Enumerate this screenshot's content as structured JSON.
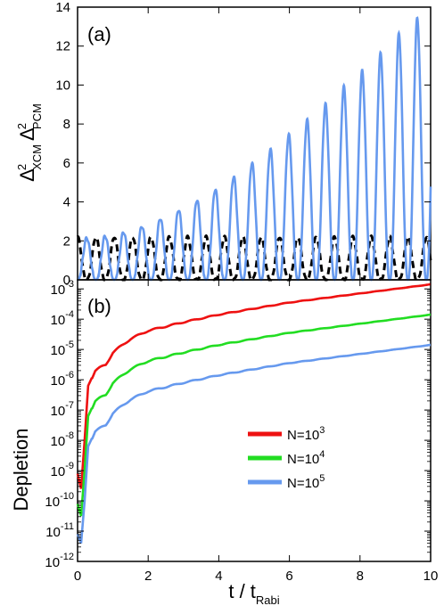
{
  "chart_data": [
    {
      "type": "line",
      "panel_label": "(a)",
      "ylabel": "Δ²XCM Δ²PCM",
      "ylabel_parts": {
        "delta": "Δ",
        "sup": "2",
        "sub_x": "XCM",
        "sub_p": "PCM"
      },
      "xlim": [
        0,
        10
      ],
      "ylim": [
        0,
        14
      ],
      "yticks": [
        "0",
        "2",
        "4",
        "6",
        "8",
        "10",
        "12",
        "14"
      ],
      "series": [
        {
          "style": "solid",
          "color": "#6699ee",
          "description_values": {
            "period": 0.52,
            "min": 0.0,
            "peak_start": 2.1,
            "peak_end": 13.8
          },
          "x": [
            0,
            0.5,
            1,
            1.5,
            2,
            2.5,
            3,
            3.5,
            4,
            4.5,
            5,
            5.5,
            6,
            6.5,
            7,
            7.5,
            8,
            8.5,
            9,
            9.5,
            10
          ],
          "peaks": [
            2.1,
            2.2,
            2.3,
            2.6,
            2.9,
            3.4,
            3.8,
            4.4,
            4.9,
            5.7,
            6.3,
            7.1,
            7.8,
            8.6,
            9.4,
            10.4,
            11.0,
            12.2,
            13.0,
            13.8
          ]
        },
        {
          "style": "dashed",
          "color": "#000000",
          "description_values": {
            "period": 0.52,
            "min": 0.0,
            "peak": 2.2
          }
        }
      ]
    },
    {
      "type": "line",
      "panel_label": "(b)",
      "ylabel": "Depletion",
      "xlabel": "t / tRabi",
      "xlabel_parts": {
        "main": "t / t",
        "sub": "Rabi"
      },
      "xlim": [
        0,
        10
      ],
      "ylog": true,
      "ylim_exp": [
        -12,
        -2.7
      ],
      "xticks": [
        "0",
        "2",
        "4",
        "6",
        "8",
        "10"
      ],
      "yticks": [
        {
          "base": "10",
          "exp": "-3"
        },
        {
          "base": "10",
          "exp": "-4"
        },
        {
          "base": "10",
          "exp": "-5"
        },
        {
          "base": "10",
          "exp": "-6"
        },
        {
          "base": "10",
          "exp": "-7"
        },
        {
          "base": "10",
          "exp": "-8"
        },
        {
          "base": "10",
          "exp": "-9"
        },
        {
          "base": "10",
          "exp": "-10"
        },
        {
          "base": "10",
          "exp": "-11"
        },
        {
          "base": "10",
          "exp": "-12"
        }
      ],
      "legend_position": "center-right",
      "series": [
        {
          "name": "N=10³",
          "name_parts": {
            "base": "N=10",
            "sup": "3"
          },
          "color": "#ee1111",
          "x": [
            0.0,
            0.1,
            0.2,
            0.3,
            0.5,
            0.8,
            1.0,
            1.5,
            2.0,
            3.0,
            4.0,
            5.0,
            6.0,
            7.0,
            8.0,
            9.0,
            10.0
          ],
          "log10_y": [
            -9.1,
            -9.6,
            -8.0,
            -6.2,
            -5.7,
            -5.5,
            -5.1,
            -4.65,
            -4.38,
            -4.1,
            -3.85,
            -3.65,
            -3.45,
            -3.3,
            -3.15,
            -3.0,
            -2.85
          ]
        },
        {
          "name": "N=10⁴",
          "name_parts": {
            "base": "N=10",
            "sup": "4"
          },
          "color": "#22dd22",
          "x": [
            0.0,
            0.1,
            0.2,
            0.3,
            0.5,
            0.8,
            1.0,
            1.5,
            2.0,
            3.0,
            4.0,
            5.0,
            6.0,
            7.0,
            8.0,
            9.0,
            10.0
          ],
          "log10_y": [
            -10.1,
            -10.5,
            -9.0,
            -7.2,
            -6.7,
            -6.5,
            -6.1,
            -5.65,
            -5.38,
            -5.1,
            -4.85,
            -4.65,
            -4.45,
            -4.3,
            -4.15,
            -4.0,
            -3.85
          ]
        },
        {
          "name": "N=10⁵",
          "name_parts": {
            "base": "N=10",
            "sup": "5"
          },
          "color": "#6699ee",
          "x": [
            0.0,
            0.1,
            0.2,
            0.3,
            0.5,
            0.8,
            1.0,
            1.5,
            2.0,
            3.0,
            4.0,
            5.0,
            6.0,
            7.0,
            8.0,
            9.0,
            10.0
          ],
          "log10_y": [
            -11.1,
            -11.4,
            -10.0,
            -8.2,
            -7.7,
            -7.5,
            -7.1,
            -6.65,
            -6.38,
            -6.1,
            -5.85,
            -5.65,
            -5.45,
            -5.3,
            -5.15,
            -5.0,
            -4.85
          ]
        }
      ]
    }
  ]
}
